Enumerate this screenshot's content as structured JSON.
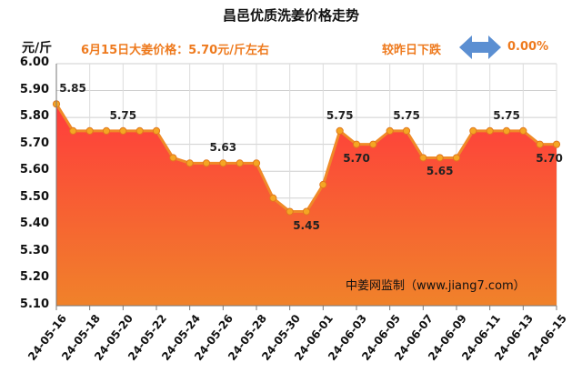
{
  "chart_data": {
    "type": "area",
    "title": "昌邑优质洗姜价格走势",
    "ylabel": "元/斤",
    "ylim": [
      5.1,
      6.0
    ],
    "yticks": [
      "6.00",
      "5.90",
      "5.80",
      "5.70",
      "5.60",
      "5.50",
      "5.40",
      "5.30",
      "5.20",
      "5.10"
    ],
    "xtick_labels": [
      "24-05-16",
      "24-05-18",
      "24-05-20",
      "24-05-22",
      "24-05-24",
      "24-05-26",
      "24-05-28",
      "24-05-30",
      "24-06-01",
      "24-06-03",
      "24-06-05",
      "24-06-07",
      "24-06-09",
      "24-06-11",
      "24-06-13",
      "24-06-15"
    ],
    "x": [
      "24-05-16",
      "24-05-17",
      "24-05-18",
      "24-05-19",
      "24-05-20",
      "24-05-21",
      "24-05-22",
      "24-05-23",
      "24-05-24",
      "24-05-25",
      "24-05-26",
      "24-05-27",
      "24-05-28",
      "24-05-29",
      "24-05-30",
      "24-05-31",
      "24-06-01",
      "24-06-02",
      "24-06-03",
      "24-06-04",
      "24-06-05",
      "24-06-06",
      "24-06-07",
      "24-06-08",
      "24-06-09",
      "24-06-10",
      "24-06-11",
      "24-06-12",
      "24-06-13",
      "24-06-14",
      "24-06-15"
    ],
    "series": [
      {
        "values": [
          5.85,
          5.75,
          5.75,
          5.75,
          5.75,
          5.75,
          5.75,
          5.65,
          5.63,
          5.63,
          5.63,
          5.63,
          5.63,
          5.5,
          5.45,
          5.45,
          5.55,
          5.75,
          5.7,
          5.7,
          5.75,
          5.75,
          5.65,
          5.65,
          5.65,
          5.75,
          5.75,
          5.75,
          5.75,
          5.7,
          5.7
        ]
      }
    ],
    "data_labels": [
      {
        "x": "24-05-16",
        "text": "5.85",
        "position": "above-right"
      },
      {
        "x": "24-05-20",
        "text": "5.75",
        "position": "above"
      },
      {
        "x": "24-05-26",
        "text": "5.63",
        "position": "above"
      },
      {
        "x": "24-05-31",
        "text": "5.45",
        "position": "below"
      },
      {
        "x": "24-06-02",
        "text": "5.75",
        "position": "above"
      },
      {
        "x": "24-06-03",
        "text": "5.70",
        "position": "below"
      },
      {
        "x": "24-06-06",
        "text": "5.75",
        "position": "above"
      },
      {
        "x": "24-06-08",
        "text": "5.65",
        "position": "below"
      },
      {
        "x": "24-06-12",
        "text": "5.75",
        "position": "above"
      },
      {
        "x": "24-06-15",
        "text": "5.70",
        "position": "below"
      }
    ],
    "grid": true,
    "legend": "none"
  },
  "headline": "6月15日大姜价格：5.70元/斤左右",
  "comparison": {
    "label": "较昨日下跌",
    "value": "0.00%",
    "icon": "double-arrow-icon"
  },
  "watermark": "中姜网监制（www.jiang7.com）",
  "colors": {
    "area_top": "#ff3c3c",
    "area_bottom": "#f0822a",
    "line": "#f08a28",
    "marker_fill": "#f5a623",
    "accent_text": "#ee7a1e",
    "arrow": "#5b8fd2"
  }
}
